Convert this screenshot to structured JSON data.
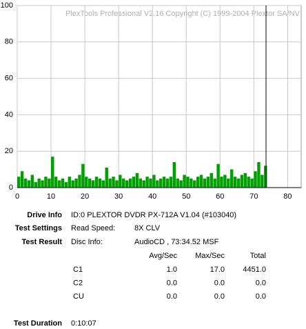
{
  "chart_data": {
    "type": "bar",
    "watermark": "PlexTools Professional V2.16 Copyright (C) 1999-2004 Plextor SA/NV",
    "x": [
      0,
      1,
      2,
      3,
      4,
      5,
      6,
      7,
      8,
      9,
      10,
      11,
      12,
      13,
      14,
      15,
      16,
      17,
      18,
      19,
      20,
      21,
      22,
      23,
      24,
      25,
      26,
      27,
      28,
      29,
      30,
      31,
      32,
      33,
      34,
      35,
      36,
      37,
      38,
      39,
      40,
      41,
      42,
      43,
      44,
      45,
      46,
      47,
      48,
      49,
      50,
      51,
      52,
      53,
      54,
      55,
      56,
      57,
      58,
      59,
      60,
      61,
      62,
      63,
      64,
      65,
      66,
      67,
      68,
      69,
      70,
      71,
      72,
      73
    ],
    "values": [
      6,
      9,
      5,
      4,
      7,
      3,
      5,
      4,
      6,
      5,
      17,
      6,
      4,
      5,
      3,
      6,
      4,
      5,
      7,
      13,
      6,
      5,
      4,
      6,
      5,
      4,
      11,
      5,
      6,
      4,
      7,
      5,
      4,
      5,
      6,
      8,
      5,
      4,
      6,
      5,
      7,
      4,
      5,
      6,
      5,
      6,
      14,
      5,
      4,
      7,
      6,
      5,
      4,
      6,
      7,
      5,
      6,
      8,
      5,
      13,
      6,
      7,
      5,
      10,
      6,
      5,
      7,
      8,
      6,
      5,
      9,
      14,
      7,
      12
    ],
    "color": "#00a000",
    "end_marker": 73.6,
    "xlim": [
      0,
      84
    ],
    "xticks": [
      0,
      10,
      20,
      30,
      40,
      50,
      60,
      70,
      80
    ],
    "ylim": [
      0,
      100
    ],
    "yticks": [
      0,
      20,
      40,
      60,
      80,
      100
    ],
    "grid": true
  },
  "info": {
    "drive_label": "Drive Info",
    "drive_value": "ID:0 PLEXTOR DVDR PX-712A V1.04 (#103040)",
    "settings_label": "Test Settings",
    "settings_key": "Read Speed:",
    "settings_value": "8X CLV",
    "result_label": "Test Result",
    "result_key": "Disc Info:",
    "result_value": "AudioCD , 73:34.52 MSF",
    "table": {
      "header": [
        "Avg/Sec",
        "Max/Sec",
        "Total"
      ],
      "rows": [
        [
          "C1",
          "1.0",
          "17.0",
          "4451.0"
        ],
        [
          "C2",
          "0.0",
          "0.0",
          "0.0"
        ],
        [
          "CU",
          "0.0",
          "0.0",
          "0.0"
        ]
      ]
    },
    "duration_label": "Test Duration",
    "duration_value": "0:10:07"
  }
}
